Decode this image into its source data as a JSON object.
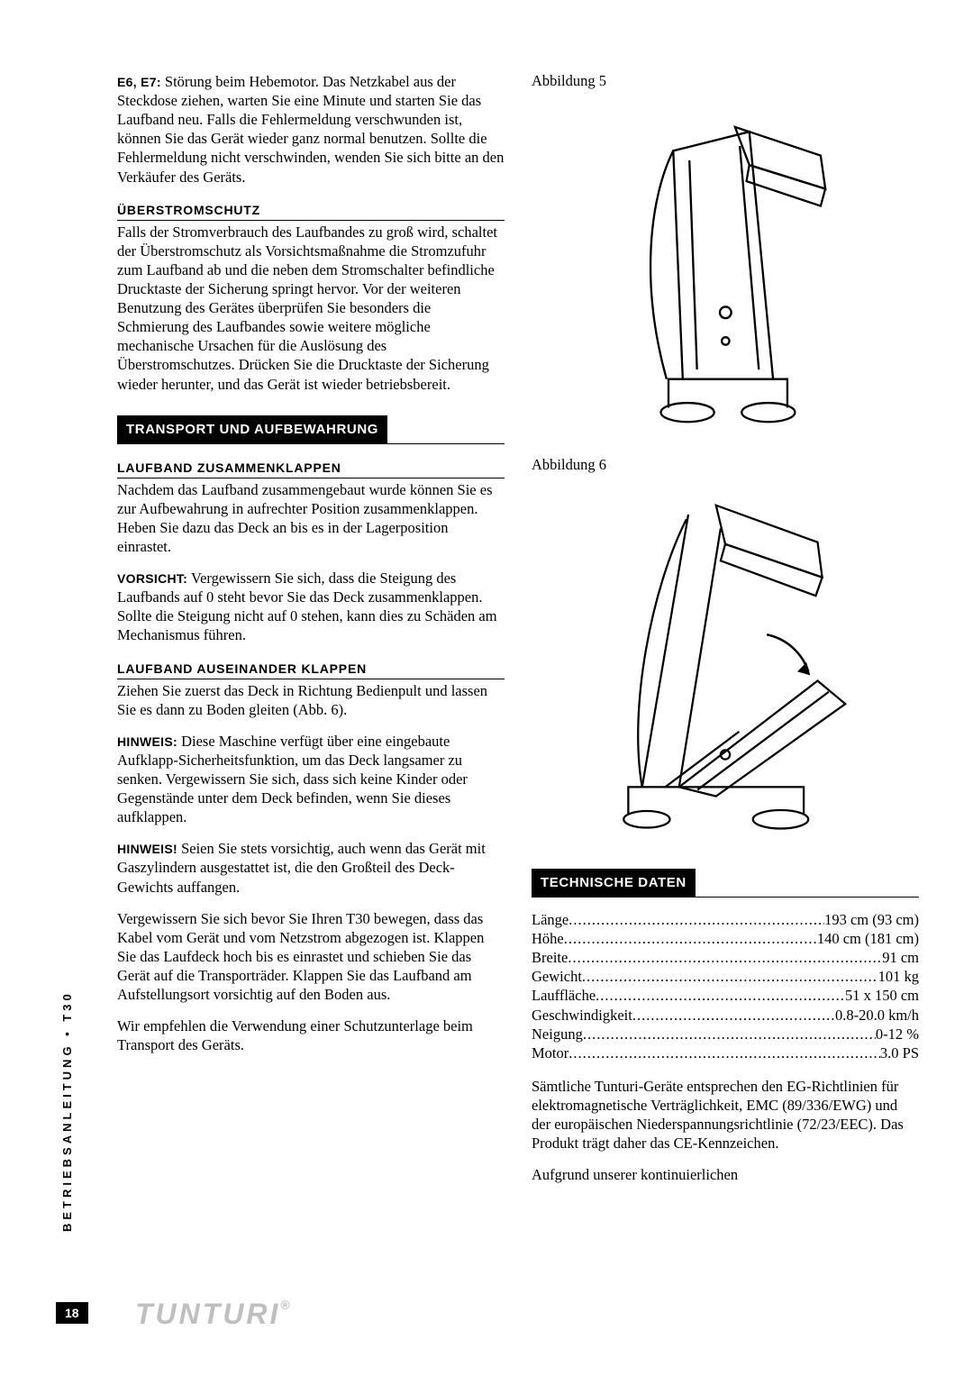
{
  "left": {
    "p1_bold": "E6, E7:",
    "p1": " Störung beim Hebemotor. Das Netzkabel aus der Steckdose ziehen, warten Sie eine Minute und starten Sie das Laufband neu. Falls die Fehlermeldung verschwunden ist, können Sie das Gerät wieder ganz normal benutzen. Sollte die Fehlermeldung nicht verschwinden, wenden Sie sich bitte an den Verkäufer des Geräts.",
    "h1": "ÜBERSTROMSCHUTZ",
    "p2": "Falls der Stromverbrauch des Laufbandes zu groß wird, schaltet der Überstromschutz als Vorsichtsmaßnahme die Stromzufuhr zum Laufband ab und die neben dem Stromschalter befindliche Drucktaste der Sicherung springt hervor. Vor der weiteren Benutzung des Gerätes überprüfen Sie besonders die Schmierung des Laufbandes sowie weitere mögliche mechanische Ursachen für die Auslösung des Überstromschutzes. Drücken Sie die Drucktaste der Sicherung wieder herunter, und das Gerät ist wieder betriebsbereit.",
    "banner1": "TRANSPORT UND AUFBEWAHRUNG",
    "h2": "LAUFBAND ZUSAMMENKLAPPEN",
    "p3": "Nachdem das Laufband zusammengebaut wurde können Sie es zur Aufbewahrung in aufrechter Position zusammenklappen. Heben Sie dazu das Deck an bis es in der Lagerposition einrastet.",
    "p4_bold": "VORSICHT:",
    "p4": " Vergewissern Sie sich, dass die Steigung des Laufbands auf 0 steht bevor Sie das Deck zusammenklappen. Sollte die Steigung nicht auf 0 stehen, kann dies zu Schäden am Mechanismus führen.",
    "h3": "LAUFBAND AUSEINANDER KLAPPEN",
    "p5": "Ziehen Sie zuerst das Deck in Richtung Bedienpult und lassen Sie es dann zu Boden gleiten (Abb. 6).",
    "p6_bold": "HINWEIS:",
    "p6": " Diese Maschine verfügt über eine eingebaute Aufklapp-Sicherheitsfunktion, um das Deck langsamer zu senken. Vergewissern Sie sich, dass sich keine Kinder oder Gegenstände unter dem Deck befinden, wenn Sie dieses aufklappen.",
    "p7_bold": "HINWEIS!",
    "p7": " Seien Sie stets vorsichtig, auch wenn das Gerät mit Gaszylindern ausgestattet ist, die den Großteil des Deck-Gewichts auffangen.",
    "p8": "Vergewissern Sie sich bevor Sie Ihren T30 bewegen, dass das Kabel vom Gerät und vom Netzstrom abgezogen ist. Klappen Sie das Laufdeck hoch bis es einrastet und schieben Sie das Gerät auf die Transporträder. Klappen Sie das Laufband am Aufstellungsort vorsichtig auf den Boden aus.",
    "p9": "Wir empfehlen die Verwendung einer Schutzunterlage beim Transport des Geräts."
  },
  "right": {
    "fig5": "Abbildung 5",
    "fig6": "Abbildung 6",
    "banner2": "TECHNISCHE DATEN",
    "specs": [
      {
        "label": "Länge",
        "value": "193 cm (93 cm)"
      },
      {
        "label": "Höhe",
        "value": "140 cm (181 cm)"
      },
      {
        "label": "Breite",
        "value": "91 cm"
      },
      {
        "label": "Gewicht",
        "value": "101 kg"
      },
      {
        "label": "Lauffläche",
        "value": "51 x 150 cm"
      },
      {
        "label": "Geschwindigkeit",
        "value": "0.8-20.0 km/h"
      },
      {
        "label": "Neigung",
        "value": "0-12 %"
      },
      {
        "label": "Motor",
        "value": "3.0 PS"
      }
    ],
    "p10": "Sämtliche Tunturi-Geräte entsprechen den EG-Richtlinien für elektromagnetische Verträglichkeit, EMC (89/336/EWG) und der europäischen Niederspannungsrichtlinie (72/23/EEC). Das Produkt trägt daher das CE-Kennzeichen.",
    "p11": "Aufgrund unserer kontinuierlichen"
  },
  "footer": {
    "side": "BETRIEBSANLEITUNG • T30",
    "page": "18",
    "logo": "TUNTURI"
  },
  "colors": {
    "banner_bg": "#000000",
    "banner_fg": "#ffffff",
    "logo_color": "#bfbfbf"
  }
}
